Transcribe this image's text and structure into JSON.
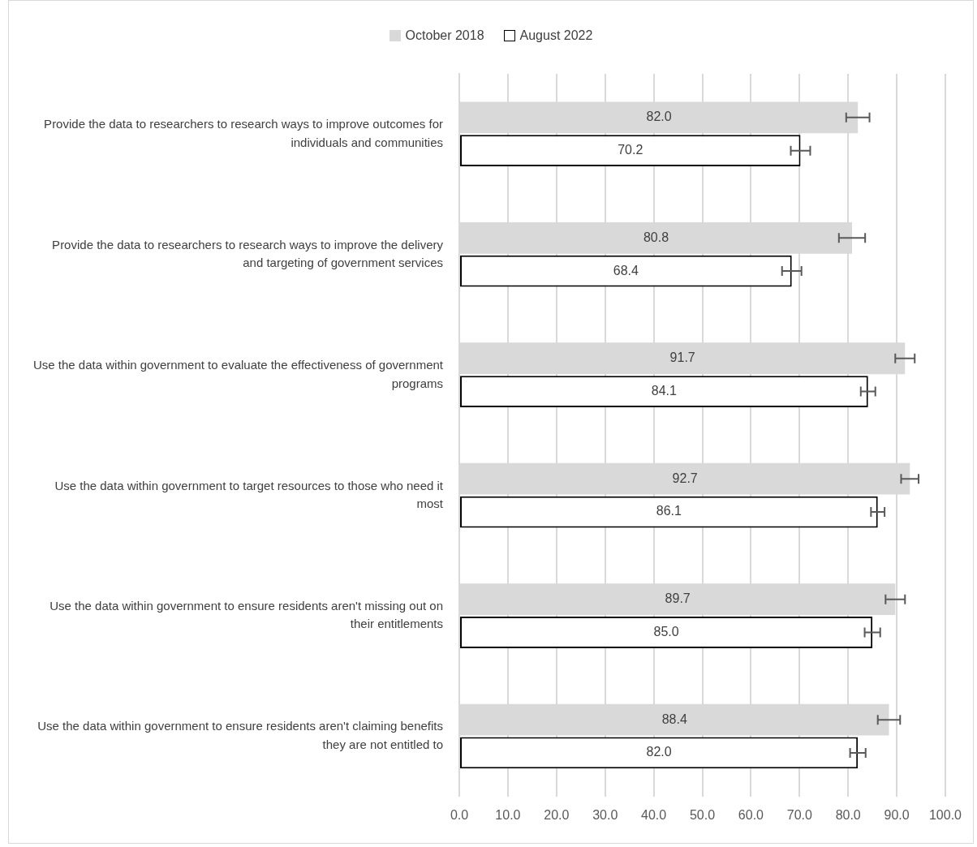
{
  "chart_data": {
    "type": "bar",
    "orientation": "horizontal",
    "categories": [
      "Provide the data to researchers to research ways to improve outcomes for individuals and communities",
      "Provide the data to researchers to research ways to improve the delivery and targeting of government services",
      "Use the data within government to evaluate the effectiveness of government programs",
      "Use the data within government to target resources to those who need it most",
      "Use the data within government to ensure residents aren't missing out on their entitlements",
      "Use the data within government to ensure residents aren't claiming benefits they are not entitled to"
    ],
    "series": [
      {
        "name": "October 2018",
        "color": "#d9d9d9",
        "values": [
          82.0,
          80.8,
          91.7,
          92.7,
          89.7,
          88.4
        ],
        "errors": [
          2.4,
          2.7,
          2.0,
          1.8,
          2.0,
          2.3
        ],
        "value_labels": [
          "82.0",
          "80.8",
          "91.7",
          "92.7",
          "89.7",
          "88.4"
        ]
      },
      {
        "name": "August 2022",
        "color": "#ffffff",
        "values": [
          70.2,
          68.4,
          84.1,
          86.1,
          85.0,
          82.0
        ],
        "errors": [
          2.0,
          2.0,
          1.5,
          1.4,
          1.6,
          1.6
        ],
        "value_labels": [
          "70.2",
          "68.4",
          "84.1",
          "86.1",
          "85.0",
          "82.0"
        ]
      }
    ],
    "xlim": [
      0,
      100
    ],
    "xticks": [
      {
        "value": 0,
        "label": "0.0"
      },
      {
        "value": 10,
        "label": "10.0"
      },
      {
        "value": 20,
        "label": "20.0"
      },
      {
        "value": 30,
        "label": "30.0"
      },
      {
        "value": 40,
        "label": "40.0"
      },
      {
        "value": 50,
        "label": "50.0"
      },
      {
        "value": 60,
        "label": "60.0"
      },
      {
        "value": 70,
        "label": "70.0"
      },
      {
        "value": 80,
        "label": "80.0"
      },
      {
        "value": 90,
        "label": "90.0"
      },
      {
        "value": 100,
        "label": "100.0"
      }
    ],
    "grid": "x",
    "legend": "top"
  }
}
